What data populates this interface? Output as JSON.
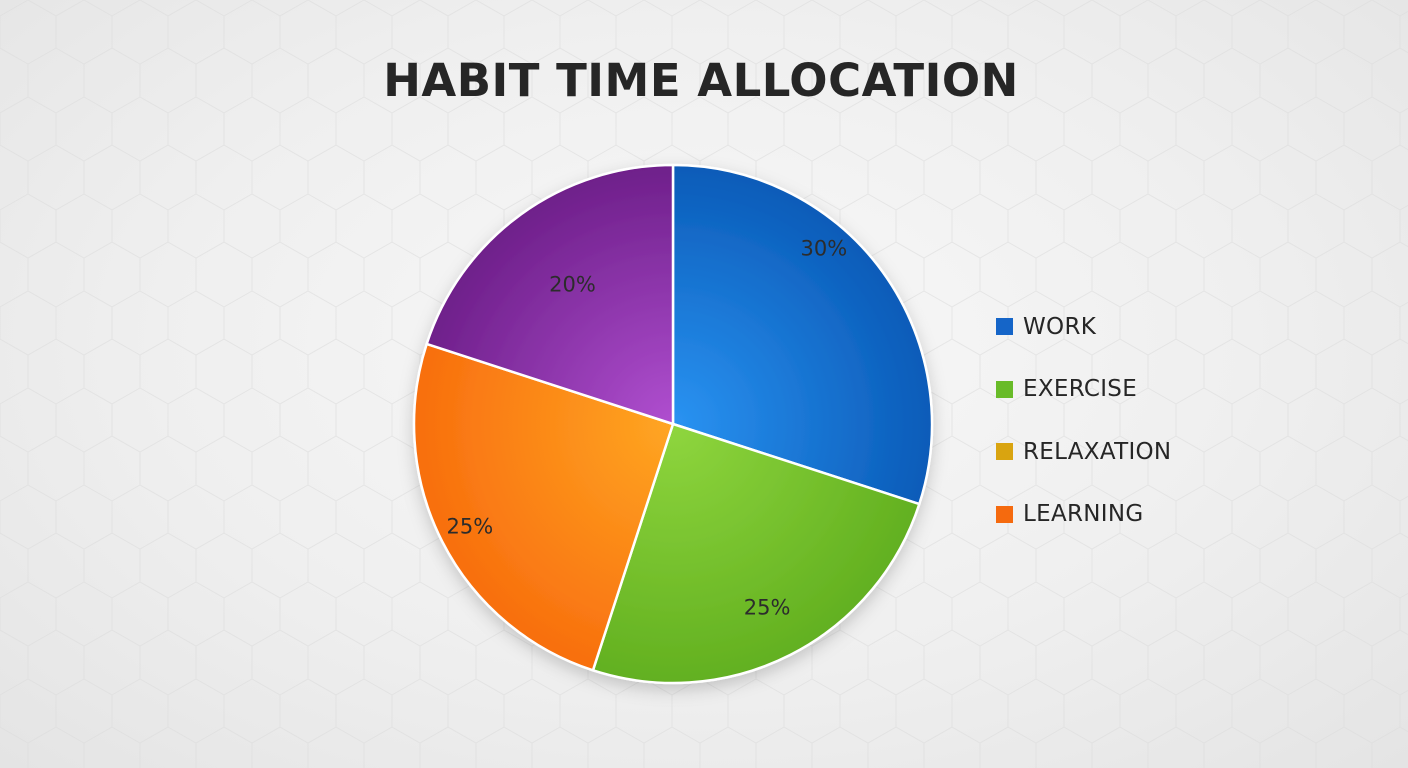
{
  "chart_data": {
    "type": "pie",
    "title": "HABIT TIME ALLOCATION",
    "categories": [
      "WORK",
      "EXERCISE",
      "LEARNING",
      "RELAXATION"
    ],
    "values": [
      30,
      25,
      25,
      20
    ],
    "value_labels": [
      "30%",
      "25%",
      "25%",
      "20%"
    ],
    "slice_colors": [
      "#1a6fd6",
      "#72c02f",
      "#fb8618",
      "#8e3aa8"
    ],
    "legend": [
      {
        "label": "WORK",
        "color": "#1565c8"
      },
      {
        "label": "EXERCISE",
        "color": "#68bb28"
      },
      {
        "label": "RELAXATION",
        "color": "#d9a410"
      },
      {
        "label": "LEARNING",
        "color": "#f56a0e"
      }
    ],
    "legend_position": "right"
  }
}
